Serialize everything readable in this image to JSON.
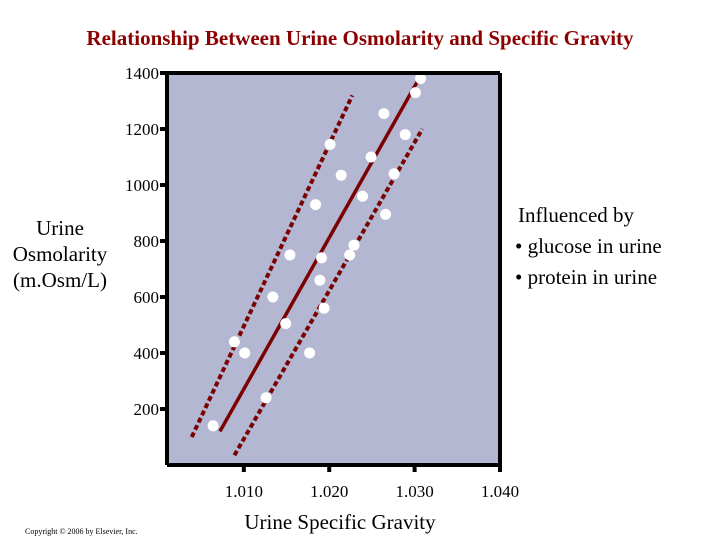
{
  "page": {
    "title": "Relationship Between Urine Osmolarity and Specific Gravity",
    "annotation": {
      "title": "Influenced by",
      "items": [
        "• glucose in urine",
        "• protein in urine"
      ]
    },
    "copyright": "Copyright © 2006 by Elsevier, Inc."
  },
  "chart_data": {
    "type": "scatter",
    "title": "Relationship Between Urine Osmolarity and Specific Gravity",
    "xlabel": "Urine Specific Gravity",
    "ylabel": [
      "Urine",
      "Osmolarity",
      "(m.Osm/L)"
    ],
    "xlim": [
      1.001,
      1.04
    ],
    "ylim": [
      0,
      1400
    ],
    "xticks": [
      1.01,
      1.02,
      1.03,
      1.04
    ],
    "xtick_labels": [
      "1.010",
      "1.020",
      "1.030",
      "1.040"
    ],
    "yticks": [
      200,
      400,
      600,
      800,
      1000,
      1200,
      1400
    ],
    "ytick_labels": [
      "200",
      "400",
      "600",
      "800",
      "1000",
      "1200",
      "1400"
    ],
    "grid": false,
    "plot_background": "#b3b7d2",
    "colors": {
      "title": "#8b0000",
      "line": "#7b0000",
      "point": "#ffffff"
    },
    "points": [
      {
        "x": 1.0064,
        "y": 140
      },
      {
        "x": 1.0089,
        "y": 440
      },
      {
        "x": 1.0101,
        "y": 400
      },
      {
        "x": 1.0126,
        "y": 240
      },
      {
        "x": 1.0134,
        "y": 600
      },
      {
        "x": 1.0149,
        "y": 505
      },
      {
        "x": 1.0154,
        "y": 750
      },
      {
        "x": 1.0177,
        "y": 400
      },
      {
        "x": 1.0184,
        "y": 930
      },
      {
        "x": 1.0189,
        "y": 660
      },
      {
        "x": 1.0191,
        "y": 740
      },
      {
        "x": 1.0194,
        "y": 560
      },
      {
        "x": 1.0201,
        "y": 1145
      },
      {
        "x": 1.0214,
        "y": 1035
      },
      {
        "x": 1.0224,
        "y": 750
      },
      {
        "x": 1.0229,
        "y": 785
      },
      {
        "x": 1.0239,
        "y": 960
      },
      {
        "x": 1.0249,
        "y": 1100
      },
      {
        "x": 1.0264,
        "y": 1255
      },
      {
        "x": 1.0266,
        "y": 895
      },
      {
        "x": 1.0276,
        "y": 1040
      },
      {
        "x": 1.0289,
        "y": 1180
      },
      {
        "x": 1.0301,
        "y": 1330
      },
      {
        "x": 1.0307,
        "y": 1380
      }
    ],
    "fit_line": {
      "x": [
        1.0072,
        1.0307
      ],
      "y": [
        120,
        1390
      ]
    },
    "bounds": {
      "upper": {
        "x": [
          1.0039,
          1.0227
        ],
        "y": [
          100,
          1320
        ]
      },
      "lower": {
        "x": [
          1.0089,
          1.0309
        ],
        "y": [
          35,
          1200
        ]
      }
    }
  }
}
